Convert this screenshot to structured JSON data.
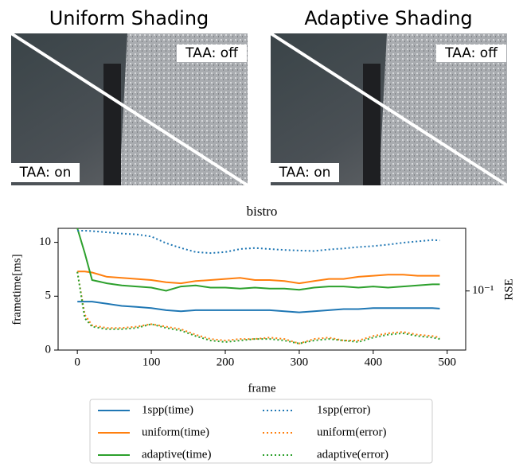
{
  "panels": [
    {
      "title": "Uniform Shading",
      "label_top": "TAA: off",
      "label_bottom": "TAA: on"
    },
    {
      "title": "Adaptive Shading",
      "label_top": "TAA: off",
      "label_bottom": "TAA: on"
    }
  ],
  "chart_data": {
    "type": "line",
    "title": "bistro",
    "x_label": "frame",
    "y_label": "frametime[ms]",
    "y2_label": "RSE",
    "x": [
      0,
      10,
      20,
      40,
      60,
      80,
      100,
      120,
      140,
      160,
      180,
      200,
      220,
      240,
      260,
      280,
      300,
      320,
      340,
      360,
      380,
      400,
      420,
      440,
      460,
      480,
      490
    ],
    "xlim": [
      -26,
      525
    ],
    "xticks": [
      0,
      100,
      200,
      300,
      400,
      500
    ],
    "ylim": [
      0,
      11.3
    ],
    "yticks": [
      0,
      5,
      10
    ],
    "y2lim": [
      0.049,
      0.213
    ],
    "y2ticks": [
      {
        "value": 0.1,
        "label": "10⁻¹"
      }
    ],
    "y2scale": "log",
    "series": [
      {
        "name": "1spp(time)",
        "color": "#1f77b4",
        "dash": "solid",
        "values": [
          4.5,
          4.5,
          4.5,
          4.3,
          4.1,
          4.0,
          3.9,
          3.7,
          3.6,
          3.7,
          3.7,
          3.7,
          3.7,
          3.7,
          3.7,
          3.6,
          3.5,
          3.6,
          3.7,
          3.8,
          3.8,
          3.9,
          3.9,
          3.9,
          3.9,
          3.9,
          3.85
        ]
      },
      {
        "name": "uniform(time)",
        "color": "#ff7f0e",
        "dash": "solid",
        "values": [
          7.3,
          7.3,
          7.2,
          6.8,
          6.7,
          6.6,
          6.5,
          6.3,
          6.2,
          6.4,
          6.5,
          6.6,
          6.7,
          6.5,
          6.5,
          6.4,
          6.2,
          6.4,
          6.6,
          6.6,
          6.8,
          6.9,
          7.0,
          7.0,
          6.9,
          6.9,
          6.9
        ]
      },
      {
        "name": "adaptive(time)",
        "color": "#2ca02c",
        "dash": "solid",
        "values": [
          11.3,
          9.0,
          6.5,
          6.2,
          6.0,
          5.9,
          5.8,
          5.5,
          5.9,
          6.0,
          5.8,
          5.8,
          5.7,
          5.8,
          5.7,
          5.7,
          5.6,
          5.8,
          5.9,
          5.9,
          5.8,
          5.9,
          5.8,
          5.9,
          6.0,
          6.1,
          6.1
        ]
      },
      {
        "name": "1spp(error)",
        "color": "#1f77b4",
        "dash": "dotted",
        "axis": "y2",
        "values": [
          0.207,
          0.207,
          0.206,
          0.203,
          0.2,
          0.198,
          0.193,
          0.178,
          0.168,
          0.16,
          0.158,
          0.16,
          0.166,
          0.168,
          0.166,
          0.164,
          0.163,
          0.162,
          0.165,
          0.167,
          0.17,
          0.172,
          0.175,
          0.179,
          0.182,
          0.185,
          0.184
        ]
      },
      {
        "name": "uniform(error)",
        "color": "#ff7f0e",
        "dash": "dotted",
        "axis": "y2",
        "values": [
          0.126,
          0.075,
          0.066,
          0.064,
          0.064,
          0.065,
          0.067,
          0.065,
          0.063,
          0.059,
          0.056,
          0.055,
          0.056,
          0.056,
          0.057,
          0.056,
          0.053,
          0.056,
          0.057,
          0.055,
          0.055,
          0.058,
          0.06,
          0.061,
          0.059,
          0.058,
          0.057
        ]
      },
      {
        "name": "adaptive(error)",
        "color": "#2ca02c",
        "dash": "dotted",
        "axis": "y2",
        "values": [
          0.126,
          0.072,
          0.065,
          0.063,
          0.063,
          0.064,
          0.067,
          0.064,
          0.062,
          0.058,
          0.055,
          0.054,
          0.055,
          0.056,
          0.056,
          0.055,
          0.053,
          0.055,
          0.056,
          0.055,
          0.054,
          0.057,
          0.059,
          0.06,
          0.058,
          0.057,
          0.056
        ]
      }
    ]
  }
}
